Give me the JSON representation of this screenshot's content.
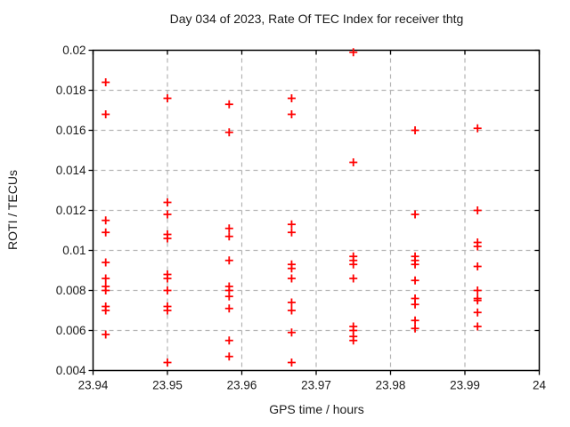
{
  "chart_data": {
    "type": "scatter",
    "title": "Day 034 of 2023, Rate Of TEC Index for receiver thtg",
    "xlabel": "GPS time / hours",
    "ylabel": "ROTI / TECUs",
    "xlim": [
      23.94,
      24
    ],
    "ylim": [
      0.004,
      0.02
    ],
    "grid": true,
    "legend": "none",
    "grid_color": "#b4b4b4",
    "border_color": "#000000",
    "xticks": {
      "values": [
        23.94,
        23.95,
        23.96,
        23.97,
        23.98,
        23.99,
        24
      ],
      "labels": [
        "23.94",
        "23.95",
        "23.96",
        "23.97",
        "23.98",
        "23.99",
        "24"
      ]
    },
    "yticks": {
      "values": [
        0.004,
        0.006,
        0.008,
        0.01,
        0.012,
        0.014,
        0.016,
        0.018,
        0.02
      ],
      "labels": [
        "0.004",
        "0.006",
        "0.008",
        "0.01",
        "0.012",
        "0.014",
        "0.016",
        "0.018",
        "0.02"
      ]
    },
    "marker": {
      "symbol": "plus",
      "color": "#ff0000",
      "half_size": 4.5,
      "stroke_width": 1.8
    },
    "series": [
      {
        "name": "ROTI",
        "points": [
          [
            23.9417,
            0.0184
          ],
          [
            23.9417,
            0.0168
          ],
          [
            23.9417,
            0.0115
          ],
          [
            23.9417,
            0.0109
          ],
          [
            23.9417,
            0.0094
          ],
          [
            23.9417,
            0.0086
          ],
          [
            23.9417,
            0.0082
          ],
          [
            23.9417,
            0.008
          ],
          [
            23.9417,
            0.0072
          ],
          [
            23.9417,
            0.007
          ],
          [
            23.9417,
            0.0058
          ],
          [
            23.95,
            0.0176
          ],
          [
            23.95,
            0.0124
          ],
          [
            23.95,
            0.0118
          ],
          [
            23.95,
            0.0108
          ],
          [
            23.95,
            0.0106
          ],
          [
            23.95,
            0.0088
          ],
          [
            23.95,
            0.0086
          ],
          [
            23.95,
            0.008
          ],
          [
            23.95,
            0.0072
          ],
          [
            23.95,
            0.007
          ],
          [
            23.95,
            0.0044
          ],
          [
            23.9583,
            0.0173
          ],
          [
            23.9583,
            0.0159
          ],
          [
            23.9583,
            0.0111
          ],
          [
            23.9583,
            0.0107
          ],
          [
            23.9583,
            0.0095
          ],
          [
            23.9583,
            0.0082
          ],
          [
            23.9583,
            0.008
          ],
          [
            23.9583,
            0.0077
          ],
          [
            23.9583,
            0.0071
          ],
          [
            23.9583,
            0.0055
          ],
          [
            23.9583,
            0.0047
          ],
          [
            23.9667,
            0.0176
          ],
          [
            23.9667,
            0.0168
          ],
          [
            23.9667,
            0.0113
          ],
          [
            23.9667,
            0.0109
          ],
          [
            23.9667,
            0.0093
          ],
          [
            23.9667,
            0.0091
          ],
          [
            23.9667,
            0.0086
          ],
          [
            23.9667,
            0.0074
          ],
          [
            23.9667,
            0.007
          ],
          [
            23.9667,
            0.0059
          ],
          [
            23.9667,
            0.0044
          ],
          [
            23.975,
            0.0199
          ],
          [
            23.975,
            0.0144
          ],
          [
            23.975,
            0.0097
          ],
          [
            23.975,
            0.0095
          ],
          [
            23.975,
            0.0093
          ],
          [
            23.975,
            0.0086
          ],
          [
            23.975,
            0.0062
          ],
          [
            23.975,
            0.006
          ],
          [
            23.975,
            0.0057
          ],
          [
            23.975,
            0.0055
          ],
          [
            23.9833,
            0.016
          ],
          [
            23.9833,
            0.0118
          ],
          [
            23.9833,
            0.0097
          ],
          [
            23.9833,
            0.0095
          ],
          [
            23.9833,
            0.0093
          ],
          [
            23.9833,
            0.0085
          ],
          [
            23.9833,
            0.0076
          ],
          [
            23.9833,
            0.0073
          ],
          [
            23.9833,
            0.0065
          ],
          [
            23.9833,
            0.0061
          ],
          [
            23.9917,
            0.0161
          ],
          [
            23.9917,
            0.012
          ],
          [
            23.9917,
            0.0104
          ],
          [
            23.9917,
            0.0102
          ],
          [
            23.9917,
            0.0092
          ],
          [
            23.9917,
            0.008
          ],
          [
            23.9917,
            0.0076
          ],
          [
            23.9917,
            0.0075
          ],
          [
            23.9917,
            0.0069
          ],
          [
            23.9917,
            0.0062
          ]
        ]
      }
    ]
  }
}
